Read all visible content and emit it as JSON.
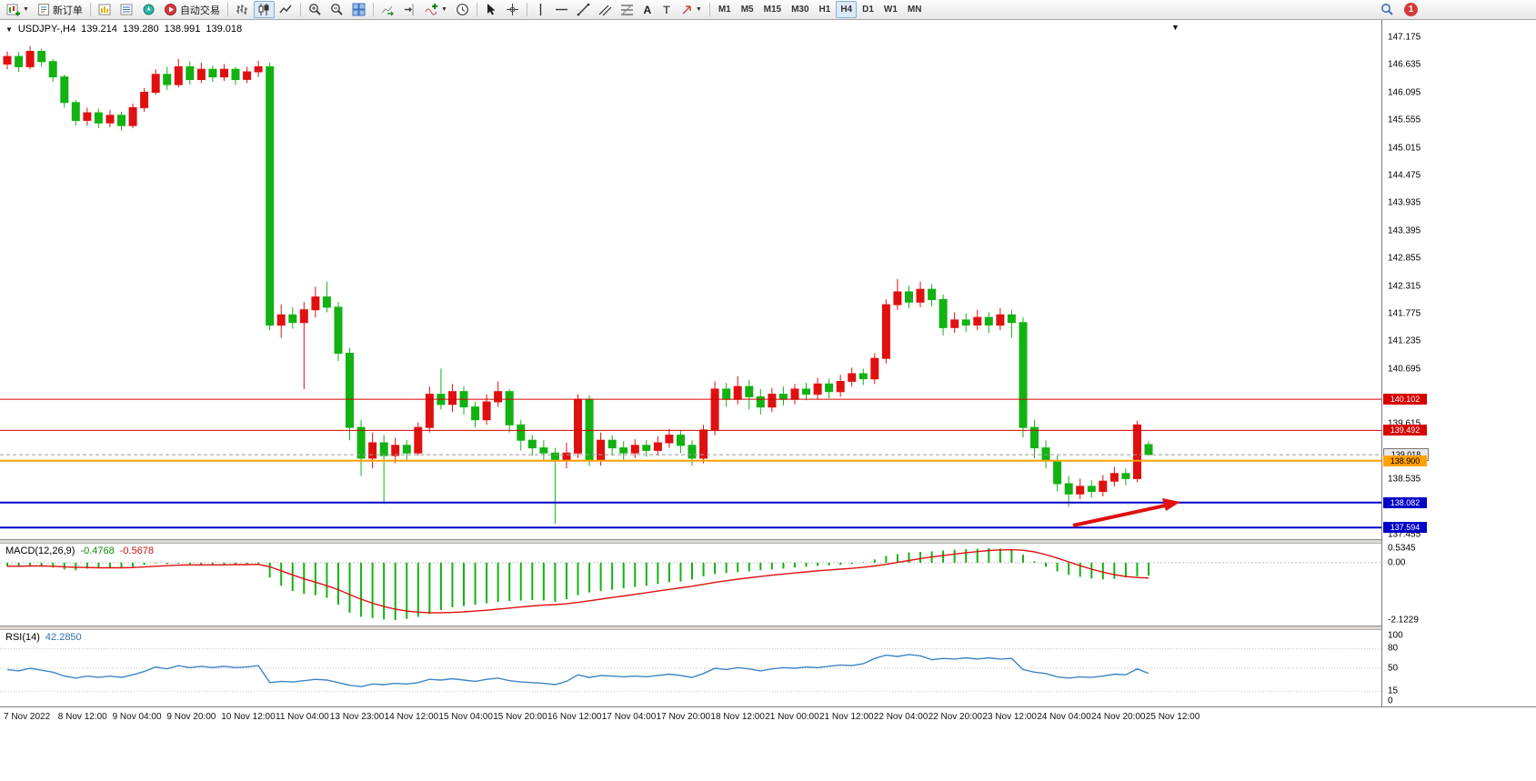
{
  "theme": {
    "bull_color": "#e01010",
    "bear_color": "#12b212",
    "macd_hist_color": "#12b212",
    "macd_signal_color": "#e01010",
    "rsi_line_color": "#3d85c8",
    "level_dot_color": "#c2c2c2"
  },
  "toolbar": {
    "new_order_label": "新订单",
    "autotrading_label": "自动交易",
    "text_tool_label": "A",
    "label_tool_label": "T",
    "timeframes": [
      "M1",
      "M5",
      "M15",
      "M30",
      "H1",
      "H4",
      "D1",
      "W1",
      "MN"
    ],
    "active_timeframe": "H4",
    "notification_badge": "1",
    "icons": [
      "new-chart-icon",
      "new-order-icon",
      "market-watch-icon",
      "data-window-icon",
      "navigator-icon",
      "autotrading-icon",
      "bar-chart-icon",
      "candlestick-chart-icon",
      "line-chart-icon",
      "zoom-in-icon",
      "zoom-out-icon",
      "tile-windows-icon",
      "auto-scroll-icon",
      "chart-shift-icon",
      "indicators-add-icon",
      "period-clock-icon",
      "cursor-icon",
      "crosshair-icon",
      "vertical-line-icon",
      "horizontal-line-icon",
      "trendline-icon",
      "channel-icon",
      "fibonacci-icon",
      "text-icon",
      "label-icon",
      "arrows-tool-icon",
      "search-icon",
      "notification-icon"
    ]
  },
  "chart": {
    "symbol_title": "USDJPY-,H4",
    "open": "139.214",
    "high": "139.280",
    "low": "138.991",
    "close": "139.018",
    "price_axis_ticks": [
      "147.175",
      "146.635",
      "146.095",
      "145.555",
      "145.015",
      "144.475",
      "143.935",
      "143.395",
      "142.855",
      "142.315",
      "141.775",
      "141.235",
      "140.695",
      "140.155",
      "139.615",
      "139.075",
      "138.535",
      "137.995",
      "137.455"
    ],
    "price_lines": [
      {
        "price": "140.102",
        "color": "#d60000",
        "width": 1,
        "style": "solid",
        "badge": true,
        "badge_bg": "#d60000",
        "badge_fg": "#ffffff"
      },
      {
        "price": "139.492",
        "color": "#d60000",
        "width": 1,
        "style": "solid",
        "badge": true,
        "badge_bg": "#d60000",
        "badge_fg": "#ffffff"
      },
      {
        "price": "139.018",
        "color": "#9a9a9a",
        "width": 1,
        "style": "dash",
        "badge": true,
        "badge_bg": "#e8e8e8",
        "badge_fg": "#000000",
        "current": true
      },
      {
        "price": "138.900",
        "color": "#ffa000",
        "width": 2,
        "style": "solid",
        "badge": true,
        "badge_bg": "#ffa000",
        "badge_fg": "#000000"
      },
      {
        "price": "138.082",
        "color": "#0000c8",
        "width": 2,
        "style": "solid",
        "badge": true,
        "badge_bg": "#0000c8",
        "badge_fg": "#ffffff"
      },
      {
        "price": "137.594",
        "color": "#0000c8",
        "width": 2,
        "style": "solid",
        "badge": true,
        "badge_bg": "#0000c8",
        "badge_fg": "#ffffff"
      }
    ],
    "time_axis": [
      "7 Nov 2022",
      "8 Nov 12:00",
      "9 Nov 04:00",
      "9 Nov 20:00",
      "10 Nov 12:00",
      "11 Nov 04:00",
      "13 Nov 23:00",
      "14 Nov 12:00",
      "15 Nov 04:00",
      "15 Nov 20:00",
      "16 Nov 12:00",
      "17 Nov 04:00",
      "17 Nov 20:00",
      "18 Nov 12:00",
      "21 Nov 00:00",
      "21 Nov 12:00",
      "22 Nov 04:00",
      "22 Nov 20:00",
      "23 Nov 12:00",
      "24 Nov 04:00",
      "24 Nov 20:00",
      "25 Nov 12:00"
    ]
  },
  "macd_panel": {
    "label": "MACD(12,26,9)",
    "main_value": "-0.4768",
    "signal_value": "-0.5678",
    "scale": [
      "0.5345",
      "0.00",
      "-2.1229"
    ]
  },
  "rsi_panel": {
    "label": "RSI(14)",
    "value": "42.2850",
    "scale": [
      "100",
      "80",
      "50",
      "15",
      "0"
    ]
  },
  "chart_data": {
    "type": "candlestick",
    "symbol": "USDJPY-",
    "timeframe": "H4",
    "price_range": [
      137.455,
      147.175
    ],
    "macd_range": [
      -2.1229,
      0.5345
    ],
    "rsi_range": [
      0,
      100
    ],
    "x_labels": [
      "7 Nov 2022",
      "8 Nov 12:00",
      "9 Nov 04:00",
      "9 Nov 20:00",
      "10 Nov 12:00",
      "11 Nov 04:00",
      "13 Nov 23:00",
      "14 Nov 12:00",
      "15 Nov 04:00",
      "15 Nov 20:00",
      "16 Nov 12:00",
      "17 Nov 04:00",
      "17 Nov 20:00",
      "18 Nov 12:00",
      "21 Nov 00:00",
      "21 Nov 12:00",
      "22 Nov 04:00",
      "22 Nov 20:00",
      "23 Nov 12:00",
      "24 Nov 04:00",
      "24 Nov 20:00",
      "25 Nov 12:00"
    ],
    "ohlc": [
      [
        146.65,
        146.9,
        146.55,
        146.8
      ],
      [
        146.8,
        146.88,
        146.5,
        146.6
      ],
      [
        146.6,
        147.0,
        146.55,
        146.9
      ],
      [
        146.9,
        146.95,
        146.6,
        146.7
      ],
      [
        146.7,
        146.75,
        146.3,
        146.4
      ],
      [
        146.4,
        146.45,
        145.8,
        145.9
      ],
      [
        145.9,
        145.95,
        145.45,
        145.55
      ],
      [
        145.55,
        145.8,
        145.45,
        145.7
      ],
      [
        145.7,
        145.78,
        145.4,
        145.5
      ],
      [
        145.5,
        145.75,
        145.42,
        145.65
      ],
      [
        145.65,
        145.72,
        145.35,
        145.45
      ],
      [
        145.45,
        145.88,
        145.4,
        145.8
      ],
      [
        145.8,
        146.18,
        145.72,
        146.1
      ],
      [
        146.1,
        146.55,
        146.05,
        146.45
      ],
      [
        146.45,
        146.6,
        146.15,
        146.25
      ],
      [
        146.25,
        146.75,
        146.2,
        146.6
      ],
      [
        146.6,
        146.7,
        146.25,
        146.35
      ],
      [
        146.35,
        146.68,
        146.28,
        146.55
      ],
      [
        146.55,
        146.62,
        146.3,
        146.4
      ],
      [
        146.4,
        146.65,
        146.32,
        146.55
      ],
      [
        146.55,
        146.6,
        146.25,
        146.35
      ],
      [
        146.35,
        146.6,
        146.28,
        146.5
      ],
      [
        146.5,
        146.72,
        146.4,
        146.6
      ],
      [
        146.6,
        146.68,
        141.45,
        141.55
      ],
      [
        141.55,
        141.95,
        141.3,
        141.75
      ],
      [
        141.75,
        141.9,
        141.48,
        141.6
      ],
      [
        141.6,
        142.0,
        140.3,
        141.85
      ],
      [
        141.85,
        142.3,
        141.7,
        142.1
      ],
      [
        142.1,
        142.4,
        141.8,
        141.9
      ],
      [
        141.9,
        142.0,
        140.85,
        141.0
      ],
      [
        141.0,
        141.1,
        139.3,
        139.55
      ],
      [
        139.55,
        139.7,
        138.6,
        138.95
      ],
      [
        138.95,
        139.45,
        138.75,
        139.25
      ],
      [
        139.25,
        139.4,
        138.05,
        139.0
      ],
      [
        139.0,
        139.35,
        138.85,
        139.2
      ],
      [
        139.2,
        139.3,
        138.9,
        139.05
      ],
      [
        139.05,
        139.65,
        139.0,
        139.55
      ],
      [
        139.55,
        140.35,
        139.45,
        140.2
      ],
      [
        140.2,
        140.7,
        139.9,
        140.0
      ],
      [
        140.0,
        140.4,
        139.85,
        140.25
      ],
      [
        140.25,
        140.35,
        139.8,
        139.95
      ],
      [
        139.95,
        140.05,
        139.55,
        139.7
      ],
      [
        139.7,
        140.2,
        139.6,
        140.05
      ],
      [
        140.05,
        140.45,
        139.95,
        140.25
      ],
      [
        140.25,
        140.3,
        139.45,
        139.6
      ],
      [
        139.6,
        139.7,
        139.1,
        139.3
      ],
      [
        139.3,
        139.4,
        139.0,
        139.15
      ],
      [
        139.15,
        139.3,
        138.9,
        139.05
      ],
      [
        139.05,
        139.15,
        137.67,
        138.9
      ],
      [
        138.9,
        139.25,
        138.75,
        139.05
      ],
      [
        139.05,
        140.2,
        138.95,
        140.1
      ],
      [
        140.1,
        140.18,
        138.8,
        138.9
      ],
      [
        138.9,
        139.45,
        138.8,
        139.3
      ],
      [
        139.3,
        139.4,
        139.0,
        139.15
      ],
      [
        139.15,
        139.28,
        138.92,
        139.05
      ],
      [
        139.05,
        139.32,
        138.95,
        139.2
      ],
      [
        139.2,
        139.3,
        138.98,
        139.1
      ],
      [
        139.1,
        139.38,
        139.0,
        139.25
      ],
      [
        139.25,
        139.52,
        139.15,
        139.4
      ],
      [
        139.4,
        139.5,
        139.05,
        139.2
      ],
      [
        139.2,
        139.3,
        138.8,
        138.95
      ],
      [
        138.95,
        139.6,
        138.85,
        139.5
      ],
      [
        139.5,
        140.45,
        139.4,
        140.3
      ],
      [
        140.3,
        140.42,
        139.95,
        140.1
      ],
      [
        140.1,
        140.55,
        140.0,
        140.35
      ],
      [
        140.35,
        140.48,
        139.9,
        140.15
      ],
      [
        140.15,
        140.3,
        139.8,
        139.95
      ],
      [
        139.95,
        140.32,
        139.85,
        140.2
      ],
      [
        140.2,
        140.35,
        139.98,
        140.1
      ],
      [
        140.1,
        140.4,
        140.0,
        140.3
      ],
      [
        140.3,
        140.42,
        140.08,
        140.2
      ],
      [
        140.2,
        140.52,
        140.1,
        140.4
      ],
      [
        140.4,
        140.5,
        140.12,
        140.25
      ],
      [
        140.25,
        140.58,
        140.15,
        140.45
      ],
      [
        140.45,
        140.72,
        140.35,
        140.6
      ],
      [
        140.6,
        140.7,
        140.38,
        140.5
      ],
      [
        140.5,
        141.0,
        140.4,
        140.9
      ],
      [
        140.9,
        142.05,
        140.8,
        141.95
      ],
      [
        141.95,
        142.45,
        141.85,
        142.2
      ],
      [
        142.2,
        142.32,
        141.88,
        142.0
      ],
      [
        142.0,
        142.4,
        141.9,
        142.25
      ],
      [
        142.25,
        142.35,
        141.92,
        142.05
      ],
      [
        142.05,
        142.15,
        141.35,
        141.5
      ],
      [
        141.5,
        141.8,
        141.4,
        141.65
      ],
      [
        141.65,
        141.78,
        141.42,
        141.55
      ],
      [
        141.55,
        141.85,
        141.45,
        141.7
      ],
      [
        141.7,
        141.8,
        141.4,
        141.55
      ],
      [
        141.55,
        141.88,
        141.45,
        141.75
      ],
      [
        141.75,
        141.85,
        141.3,
        141.6
      ],
      [
        141.6,
        141.7,
        139.35,
        139.55
      ],
      [
        139.55,
        139.7,
        138.95,
        139.15
      ],
      [
        139.15,
        139.3,
        138.75,
        138.9
      ],
      [
        138.9,
        139.0,
        138.3,
        138.45
      ],
      [
        138.45,
        138.6,
        138.0,
        138.25
      ],
      [
        138.25,
        138.55,
        138.15,
        138.4
      ],
      [
        138.4,
        138.52,
        138.18,
        138.3
      ],
      [
        138.3,
        138.62,
        138.2,
        138.5
      ],
      [
        138.5,
        138.78,
        138.4,
        138.65
      ],
      [
        138.65,
        138.75,
        138.42,
        138.55
      ],
      [
        138.55,
        139.68,
        138.48,
        139.6
      ],
      [
        139.214,
        139.28,
        138.991,
        139.018
      ]
    ],
    "macd_histogram": [
      -0.15,
      -0.12,
      -0.1,
      -0.14,
      -0.18,
      -0.25,
      -0.28,
      -0.22,
      -0.2,
      -0.18,
      -0.2,
      -0.15,
      -0.08,
      -0.02,
      -0.05,
      -0.03,
      -0.06,
      -0.1,
      -0.08,
      -0.06,
      -0.08,
      -0.05,
      -0.04,
      -0.55,
      -0.85,
      -1.05,
      -1.15,
      -1.2,
      -1.3,
      -1.55,
      -1.85,
      -2.0,
      -2.05,
      -2.1,
      -2.1229,
      -2.08,
      -2.0,
      -1.9,
      -1.75,
      -1.65,
      -1.6,
      -1.55,
      -1.5,
      -1.45,
      -1.42,
      -1.4,
      -1.38,
      -1.4,
      -1.45,
      -1.35,
      -1.2,
      -1.1,
      -1.05,
      -1.0,
      -0.95,
      -0.9,
      -0.85,
      -0.78,
      -0.72,
      -0.7,
      -0.62,
      -0.5,
      -0.42,
      -0.38,
      -0.35,
      -0.32,
      -0.28,
      -0.25,
      -0.22,
      -0.18,
      -0.15,
      -0.12,
      -0.1,
      -0.08,
      -0.05,
      0.02,
      0.12,
      0.25,
      0.32,
      0.38,
      0.4,
      0.42,
      0.45,
      0.48,
      0.5,
      0.52,
      0.5345,
      0.52,
      0.48,
      0.3,
      0.05,
      -0.15,
      -0.32,
      -0.45,
      -0.52,
      -0.58,
      -0.62,
      -0.6,
      -0.55,
      -0.5,
      -0.4768
    ],
    "macd_signal": [
      -0.13,
      -0.13,
      -0.12,
      -0.12,
      -0.13,
      -0.15,
      -0.17,
      -0.18,
      -0.19,
      -0.19,
      -0.19,
      -0.18,
      -0.16,
      -0.13,
      -0.11,
      -0.09,
      -0.08,
      -0.08,
      -0.08,
      -0.08,
      -0.07,
      -0.07,
      -0.06,
      -0.15,
      -0.3,
      -0.45,
      -0.6,
      -0.72,
      -0.85,
      -1.0,
      -1.18,
      -1.35,
      -1.5,
      -1.62,
      -1.72,
      -1.79,
      -1.83,
      -1.85,
      -1.85,
      -1.84,
      -1.82,
      -1.79,
      -1.76,
      -1.72,
      -1.68,
      -1.64,
      -1.6,
      -1.57,
      -1.55,
      -1.52,
      -1.47,
      -1.41,
      -1.35,
      -1.29,
      -1.23,
      -1.17,
      -1.11,
      -1.05,
      -0.99,
      -0.93,
      -0.87,
      -0.8,
      -0.73,
      -0.67,
      -0.61,
      -0.56,
      -0.51,
      -0.46,
      -0.42,
      -0.38,
      -0.34,
      -0.3,
      -0.27,
      -0.24,
      -0.21,
      -0.17,
      -0.12,
      -0.06,
      0.01,
      0.08,
      0.15,
      0.21,
      0.27,
      0.32,
      0.37,
      0.41,
      0.45,
      0.47,
      0.48,
      0.46,
      0.4,
      0.3,
      0.17,
      0.03,
      -0.11,
      -0.24,
      -0.35,
      -0.44,
      -0.51,
      -0.55,
      -0.5678
    ],
    "rsi": [
      48,
      46,
      50,
      47,
      44,
      38,
      35,
      38,
      36,
      38,
      36,
      40,
      45,
      52,
      49,
      54,
      51,
      53,
      51,
      53,
      51,
      52,
      54,
      28,
      30,
      29,
      31,
      33,
      32,
      28,
      24,
      22,
      26,
      25,
      27,
      26,
      28,
      33,
      32,
      34,
      32,
      30,
      33,
      35,
      31,
      29,
      28,
      27,
      25,
      30,
      40,
      36,
      39,
      38,
      37,
      38,
      37,
      39,
      41,
      39,
      36,
      42,
      50,
      48,
      51,
      49,
      46,
      49,
      51,
      50,
      52,
      51,
      53,
      55,
      54,
      57,
      65,
      70,
      68,
      71,
      69,
      63,
      65,
      64,
      66,
      64,
      66,
      64,
      65,
      48,
      44,
      42,
      37,
      35,
      37,
      36,
      38,
      41,
      40,
      49,
      42.285
    ]
  }
}
